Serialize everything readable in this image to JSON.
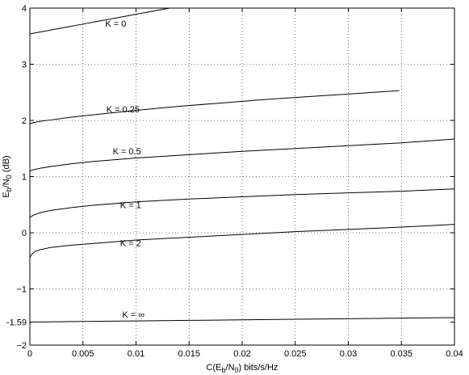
{
  "chart_data": {
    "type": "line",
    "title": "",
    "xlabel": "C(E_b/N_0) bits/s/Hz",
    "ylabel": "E_b/N_0 (dB)",
    "xlim": [
      0,
      0.04
    ],
    "ylim": [
      -2,
      4
    ],
    "grid": true,
    "grid_style": "dotted",
    "x_ticks": [
      {
        "value": 0,
        "label": "0"
      },
      {
        "value": 0.005,
        "label": "0.005"
      },
      {
        "value": 0.01,
        "label": "0.01"
      },
      {
        "value": 0.015,
        "label": "0.015"
      },
      {
        "value": 0.02,
        "label": "0.02"
      },
      {
        "value": 0.025,
        "label": "0.025"
      },
      {
        "value": 0.03,
        "label": "0.03"
      },
      {
        "value": 0.035,
        "label": "0.035"
      },
      {
        "value": 0.04,
        "label": "0.04"
      }
    ],
    "y_ticks": [
      {
        "value": -2,
        "label": "−2"
      },
      {
        "value": -1.59,
        "label": "-1.59"
      },
      {
        "value": -1,
        "label": "−1"
      },
      {
        "value": 0,
        "label": "0"
      },
      {
        "value": 1,
        "label": "1"
      },
      {
        "value": 2,
        "label": "2"
      },
      {
        "value": 3,
        "label": "3"
      },
      {
        "value": 4,
        "label": "4"
      }
    ],
    "series": [
      {
        "name": "K = 0",
        "label_at": [
          0.0071,
          3.73
        ],
        "points": [
          [
            0,
            3.54
          ],
          [
            0.001,
            3.575
          ],
          [
            0.002,
            3.61
          ],
          [
            0.003,
            3.645
          ],
          [
            0.004,
            3.68
          ],
          [
            0.005,
            3.715
          ],
          [
            0.006,
            3.75
          ],
          [
            0.007,
            3.785
          ],
          [
            0.008,
            3.82
          ],
          [
            0.009,
            3.855
          ],
          [
            0.01,
            3.89
          ],
          [
            0.011,
            3.925
          ],
          [
            0.012,
            3.96
          ],
          [
            0.0132,
            4.0
          ]
        ]
      },
      {
        "name": "K  = 0.25",
        "label_at": [
          0.0072,
          2.2
        ],
        "points": [
          [
            0,
            1.94
          ],
          [
            0.0003,
            1.96
          ],
          [
            0.001,
            1.985
          ],
          [
            0.002,
            2.01
          ],
          [
            0.004,
            2.06
          ],
          [
            0.006,
            2.1
          ],
          [
            0.008,
            2.14
          ],
          [
            0.01,
            2.18
          ],
          [
            0.014,
            2.25
          ],
          [
            0.018,
            2.31
          ],
          [
            0.022,
            2.37
          ],
          [
            0.026,
            2.42
          ],
          [
            0.03,
            2.47
          ],
          [
            0.0348,
            2.53
          ]
        ]
      },
      {
        "name": "K = 0.5",
        "label_at": [
          0.0078,
          1.45
        ],
        "points": [
          [
            0,
            1.1
          ],
          [
            0.0003,
            1.12
          ],
          [
            0.001,
            1.15
          ],
          [
            0.002,
            1.18
          ],
          [
            0.004,
            1.23
          ],
          [
            0.006,
            1.27
          ],
          [
            0.008,
            1.3
          ],
          [
            0.01,
            1.33
          ],
          [
            0.015,
            1.39
          ],
          [
            0.02,
            1.45
          ],
          [
            0.025,
            1.5
          ],
          [
            0.03,
            1.55
          ],
          [
            0.035,
            1.6
          ],
          [
            0.04,
            1.67
          ]
        ]
      },
      {
        "name": "K = 1",
        "label_at": [
          0.0085,
          0.5
        ],
        "points": [
          [
            0,
            0.27
          ],
          [
            0.0003,
            0.31
          ],
          [
            0.001,
            0.36
          ],
          [
            0.002,
            0.4
          ],
          [
            0.004,
            0.45
          ],
          [
            0.006,
            0.49
          ],
          [
            0.008,
            0.52
          ],
          [
            0.01,
            0.55
          ],
          [
            0.015,
            0.6
          ],
          [
            0.02,
            0.64
          ],
          [
            0.025,
            0.68
          ],
          [
            0.03,
            0.71
          ],
          [
            0.035,
            0.74
          ],
          [
            0.04,
            0.78
          ]
        ]
      },
      {
        "name": "K = 2",
        "label_at": [
          0.0085,
          -0.18
        ],
        "points": [
          [
            0,
            -0.44
          ],
          [
            0.0002,
            -0.38
          ],
          [
            0.0005,
            -0.33
          ],
          [
            0.001,
            -0.3
          ],
          [
            0.002,
            -0.26
          ],
          [
            0.004,
            -0.22
          ],
          [
            0.006,
            -0.19
          ],
          [
            0.008,
            -0.16
          ],
          [
            0.01,
            -0.13
          ],
          [
            0.015,
            -0.08
          ],
          [
            0.02,
            -0.03
          ],
          [
            0.025,
            0.02
          ],
          [
            0.03,
            0.06
          ],
          [
            0.035,
            0.1
          ],
          [
            0.04,
            0.15
          ]
        ]
      },
      {
        "name": "K = ∞",
        "label_at": [
          0.0087,
          -1.45
        ],
        "points": [
          [
            0,
            -1.59
          ],
          [
            0.005,
            -1.58
          ],
          [
            0.01,
            -1.57
          ],
          [
            0.015,
            -1.56
          ],
          [
            0.02,
            -1.55
          ],
          [
            0.025,
            -1.54
          ],
          [
            0.03,
            -1.53
          ],
          [
            0.035,
            -1.52
          ],
          [
            0.04,
            -1.51
          ]
        ]
      }
    ]
  }
}
